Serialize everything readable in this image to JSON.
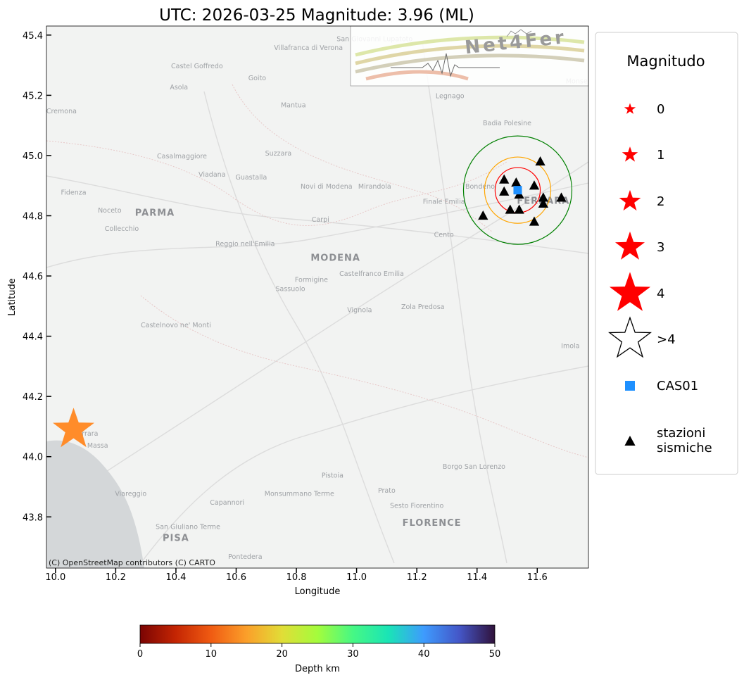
{
  "title": "UTC: 2026-03-25 Magnitude: 3.96 (ML)",
  "map": {
    "xlabel": "Longitude",
    "ylabel": "Latitude",
    "xlim": [
      9.97,
      11.77
    ],
    "ylim": [
      43.63,
      45.43
    ],
    "xticks": [
      {
        "v": 10.0,
        "label": "10.0"
      },
      {
        "v": 10.2,
        "label": "10.2"
      },
      {
        "v": 10.4,
        "label": "10.4"
      },
      {
        "v": 10.6,
        "label": "10.6"
      },
      {
        "v": 10.8,
        "label": "10.8"
      },
      {
        "v": 11.0,
        "label": "11.0"
      },
      {
        "v": 11.2,
        "label": "11.2"
      },
      {
        "v": 11.4,
        "label": "11.4"
      },
      {
        "v": 11.6,
        "label": "11.6"
      }
    ],
    "yticks": [
      {
        "v": 43.8,
        "label": "43.8"
      },
      {
        "v": 44.0,
        "label": "44.0"
      },
      {
        "v": 44.2,
        "label": "44.2"
      },
      {
        "v": 44.4,
        "label": "44.4"
      },
      {
        "v": 44.6,
        "label": "44.6"
      },
      {
        "v": 44.8,
        "label": "44.8"
      },
      {
        "v": 45.0,
        "label": "45.0"
      },
      {
        "v": 45.2,
        "label": "45.2"
      },
      {
        "v": 45.4,
        "label": "45.4"
      }
    ],
    "attribution": "(C) OpenStreetMap contributors (C) CARTO",
    "logo_text": "Net4Fer",
    "places": [
      {
        "name": "San Giovanni Lupatoto",
        "lon": 11.06,
        "lat": 45.38,
        "major": false
      },
      {
        "name": "Villafranca di Verona",
        "lon": 10.84,
        "lat": 45.35,
        "major": false
      },
      {
        "name": "Castel Goffredo",
        "lon": 10.47,
        "lat": 45.29,
        "major": false
      },
      {
        "name": "Goito",
        "lon": 10.67,
        "lat": 45.25,
        "major": false
      },
      {
        "name": "Asola",
        "lon": 10.41,
        "lat": 45.22,
        "major": false
      },
      {
        "name": "Mantua",
        "lon": 10.79,
        "lat": 45.16,
        "major": false
      },
      {
        "name": "Legnago",
        "lon": 11.31,
        "lat": 45.19,
        "major": false
      },
      {
        "name": "Cremona",
        "lon": 10.02,
        "lat": 45.14,
        "major": false
      },
      {
        "name": "Badia Polesine",
        "lon": 11.5,
        "lat": 45.1,
        "major": false
      },
      {
        "name": "Casalmaggiore",
        "lon": 10.42,
        "lat": 44.99,
        "major": false
      },
      {
        "name": "Suzzara",
        "lon": 10.74,
        "lat": 45.0,
        "major": false
      },
      {
        "name": "Viadana",
        "lon": 10.52,
        "lat": 44.93,
        "major": false
      },
      {
        "name": "Guastalla",
        "lon": 10.65,
        "lat": 44.92,
        "major": false
      },
      {
        "name": "Novi di Modena",
        "lon": 10.9,
        "lat": 44.89,
        "major": false
      },
      {
        "name": "Mirandola",
        "lon": 11.06,
        "lat": 44.89,
        "major": false
      },
      {
        "name": "Bondeno",
        "lon": 11.41,
        "lat": 44.89,
        "major": false
      },
      {
        "name": "Fidenza",
        "lon": 10.06,
        "lat": 44.87,
        "major": false
      },
      {
        "name": "Finale Emilia",
        "lon": 11.29,
        "lat": 44.84,
        "major": false
      },
      {
        "name": "FERRARA",
        "lon": 11.62,
        "lat": 44.84,
        "major": true
      },
      {
        "name": "Noceto",
        "lon": 10.18,
        "lat": 44.81,
        "major": false
      },
      {
        "name": "PARMA",
        "lon": 10.33,
        "lat": 44.8,
        "major": true
      },
      {
        "name": "Carpi",
        "lon": 10.88,
        "lat": 44.78,
        "major": false
      },
      {
        "name": "Collecchio",
        "lon": 10.22,
        "lat": 44.75,
        "major": false
      },
      {
        "name": "Cento",
        "lon": 11.29,
        "lat": 44.73,
        "major": false
      },
      {
        "name": "Reggio nell'Emilia",
        "lon": 10.63,
        "lat": 44.7,
        "major": false
      },
      {
        "name": "MODENA",
        "lon": 10.93,
        "lat": 44.65,
        "major": true
      },
      {
        "name": "Castelfranco Emilia",
        "lon": 11.05,
        "lat": 44.6,
        "major": false
      },
      {
        "name": "Formigine",
        "lon": 10.85,
        "lat": 44.58,
        "major": false
      },
      {
        "name": "Sassuolo",
        "lon": 10.78,
        "lat": 44.55,
        "major": false
      },
      {
        "name": "Vignola",
        "lon": 11.01,
        "lat": 44.48,
        "major": false
      },
      {
        "name": "Zola Predosa",
        "lon": 11.22,
        "lat": 44.49,
        "major": false
      },
      {
        "name": "Castelnovo ne' Monti",
        "lon": 10.4,
        "lat": 44.43,
        "major": false
      },
      {
        "name": "Imola",
        "lon": 11.71,
        "lat": 44.36,
        "major": false
      },
      {
        "name": "Massa",
        "lon": 10.14,
        "lat": 44.03,
        "major": false
      },
      {
        "name": "Carrara",
        "lon": 10.1,
        "lat": 44.07,
        "major": false
      },
      {
        "name": "Borgo San Lorenzo",
        "lon": 11.39,
        "lat": 43.96,
        "major": false
      },
      {
        "name": "Pistoia",
        "lon": 10.92,
        "lat": 43.93,
        "major": false
      },
      {
        "name": "Prato",
        "lon": 11.1,
        "lat": 43.88,
        "major": false
      },
      {
        "name": "Viareggio",
        "lon": 10.25,
        "lat": 43.87,
        "major": false
      },
      {
        "name": "Monsummano Terme",
        "lon": 10.81,
        "lat": 43.87,
        "major": false
      },
      {
        "name": "Capannori",
        "lon": 10.57,
        "lat": 43.84,
        "major": false
      },
      {
        "name": "Sesto Fiorentino",
        "lon": 11.2,
        "lat": 43.83,
        "major": false
      },
      {
        "name": "San Giuliano Terme",
        "lon": 10.44,
        "lat": 43.76,
        "major": false
      },
      {
        "name": "FLORENCE",
        "lon": 11.25,
        "lat": 43.77,
        "major": true
      },
      {
        "name": "PISA",
        "lon": 10.4,
        "lat": 43.72,
        "major": true
      },
      {
        "name": "Pontedera",
        "lon": 10.63,
        "lat": 43.66,
        "major": false
      },
      {
        "name": "Monselice",
        "lon": 11.75,
        "lat": 45.24,
        "major": false
      }
    ],
    "epicenter": {
      "lon": 10.06,
      "lat": 44.09,
      "magnitude": 3.96,
      "color": "#ff8c2a"
    },
    "reference_station": {
      "name": "CAS01",
      "lon": 11.535,
      "lat": 44.885,
      "color": "#1e90ff"
    },
    "rings": [
      {
        "radius_deg": 0.075,
        "color": "#ff0000"
      },
      {
        "radius_deg": 0.11,
        "color": "#ffa500"
      },
      {
        "radius_deg": 0.18,
        "color": "#008000"
      }
    ],
    "stations": [
      {
        "lon": 11.61,
        "lat": 44.98
      },
      {
        "lon": 11.49,
        "lat": 44.92
      },
      {
        "lon": 11.53,
        "lat": 44.91
      },
      {
        "lon": 11.59,
        "lat": 44.9
      },
      {
        "lon": 11.49,
        "lat": 44.88
      },
      {
        "lon": 11.54,
        "lat": 44.87
      },
      {
        "lon": 11.62,
        "lat": 44.86
      },
      {
        "lon": 11.68,
        "lat": 44.86
      },
      {
        "lon": 11.62,
        "lat": 44.84
      },
      {
        "lon": 11.51,
        "lat": 44.82
      },
      {
        "lon": 11.54,
        "lat": 44.82
      },
      {
        "lon": 11.42,
        "lat": 44.8
      },
      {
        "lon": 11.59,
        "lat": 44.78
      }
    ]
  },
  "legend": {
    "title": "Magnitudo",
    "items": [
      {
        "label": "0",
        "kind": "star",
        "size": 1
      },
      {
        "label": "1",
        "kind": "star",
        "size": 1.4
      },
      {
        "label": "2",
        "kind": "star",
        "size": 1.9
      },
      {
        "label": "3",
        "kind": "star",
        "size": 2.6
      },
      {
        "label": "4",
        "kind": "star",
        "size": 3.6
      },
      {
        "label": ">4",
        "kind": "star-outline",
        "size": 3.6
      },
      {
        "label": "CAS01",
        "kind": "square",
        "size": 1
      },
      {
        "label": "stazioni",
        "label2": "sismiche",
        "kind": "triangle",
        "size": 1
      }
    ]
  },
  "colorbar": {
    "label": "Depth km",
    "min": 0,
    "max": 50,
    "ticks": [
      {
        "v": 0,
        "label": "0"
      },
      {
        "v": 10,
        "label": "10"
      },
      {
        "v": 20,
        "label": "20"
      },
      {
        "v": 30,
        "label": "30"
      },
      {
        "v": 40,
        "label": "40"
      },
      {
        "v": 50,
        "label": "50"
      }
    ],
    "colormap": [
      "#7a0403",
      "#c42503",
      "#f05b12",
      "#fb9f2a",
      "#e1dd37",
      "#a4fc3c",
      "#46f884",
      "#1ae4b6",
      "#3e9bfe",
      "#4456c7",
      "#30123b"
    ]
  }
}
